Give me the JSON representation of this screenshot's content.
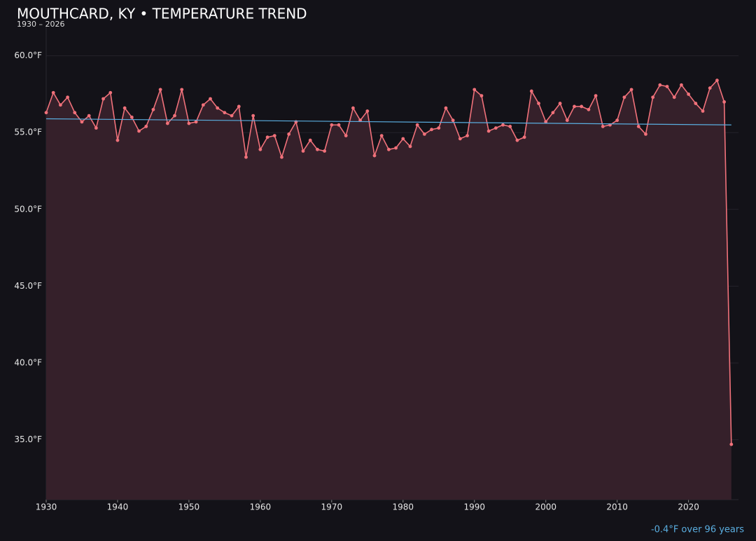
{
  "chart_data": {
    "type": "line",
    "title": "MOUTHCARD, KY • TEMPERATURE TREND",
    "subtitle": "1930 – 2026",
    "annotation": "-0.4°F over 96 years",
    "x": [
      1930,
      1931,
      1932,
      1933,
      1934,
      1935,
      1936,
      1937,
      1938,
      1939,
      1940,
      1941,
      1942,
      1943,
      1944,
      1945,
      1946,
      1947,
      1948,
      1949,
      1950,
      1951,
      1952,
      1953,
      1954,
      1955,
      1956,
      1957,
      1958,
      1959,
      1960,
      1961,
      1962,
      1963,
      1964,
      1965,
      1966,
      1967,
      1968,
      1969,
      1970,
      1971,
      1972,
      1973,
      1974,
      1975,
      1976,
      1977,
      1978,
      1979,
      1980,
      1981,
      1982,
      1983,
      1984,
      1985,
      1986,
      1987,
      1988,
      1989,
      1990,
      1991,
      1992,
      1993,
      1994,
      1995,
      1996,
      1997,
      1998,
      1999,
      2000,
      2001,
      2002,
      2003,
      2004,
      2005,
      2006,
      2007,
      2008,
      2009,
      2010,
      2011,
      2012,
      2013,
      2014,
      2015,
      2016,
      2017,
      2018,
      2019,
      2020,
      2021,
      2022,
      2023,
      2024,
      2025,
      2026
    ],
    "series": [
      {
        "color": "#f0717a",
        "fill": "#35202a",
        "values": [
          56.3,
          57.6,
          56.8,
          57.3,
          56.3,
          55.7,
          56.1,
          55.3,
          57.2,
          57.6,
          54.5,
          56.6,
          56.0,
          55.1,
          55.4,
          56.5,
          57.8,
          55.6,
          56.1,
          57.8,
          55.6,
          55.7,
          56.8,
          57.2,
          56.6,
          56.3,
          56.1,
          56.7,
          53.4,
          56.1,
          53.9,
          54.7,
          54.8,
          53.4,
          54.9,
          55.7,
          53.8,
          54.5,
          53.9,
          53.8,
          55.5,
          55.5,
          54.8,
          56.6,
          55.8,
          56.4,
          53.5,
          54.8,
          53.9,
          54.0,
          54.6,
          54.1,
          55.5,
          54.9,
          55.2,
          55.3,
          56.6,
          55.8,
          54.6,
          54.8,
          57.8,
          57.4,
          55.1,
          55.3,
          55.5,
          55.4,
          54.5,
          54.7,
          57.7,
          56.9,
          55.7,
          56.3,
          56.9,
          55.8,
          56.7,
          56.7,
          56.5,
          57.4,
          55.4,
          55.5,
          55.8,
          57.3,
          57.8,
          55.4,
          54.9,
          57.3,
          58.1,
          58.0,
          57.3,
          58.1,
          57.5,
          56.9,
          56.4,
          57.9,
          58.4,
          57.0,
          34.7
        ]
      }
    ],
    "trend": {
      "color": "#5aaee0",
      "x": [
        1930,
        2026
      ],
      "values": [
        55.9,
        55.5
      ]
    },
    "xlim": [
      1930,
      2027
    ],
    "ylim": [
      31.1,
      61.9
    ],
    "xticks": [
      1930,
      1940,
      1950,
      1960,
      1970,
      1980,
      1990,
      2000,
      2010,
      2020
    ],
    "yticks": [
      {
        "value": 35,
        "label": "35.0°F"
      },
      {
        "value": 40,
        "label": "40.0°F"
      },
      {
        "value": 45,
        "label": "45.0°F"
      },
      {
        "value": 50,
        "label": "50.0°F"
      },
      {
        "value": 55,
        "label": "55.0°F"
      },
      {
        "value": 60,
        "label": "60.0°F"
      }
    ],
    "grid": true
  }
}
